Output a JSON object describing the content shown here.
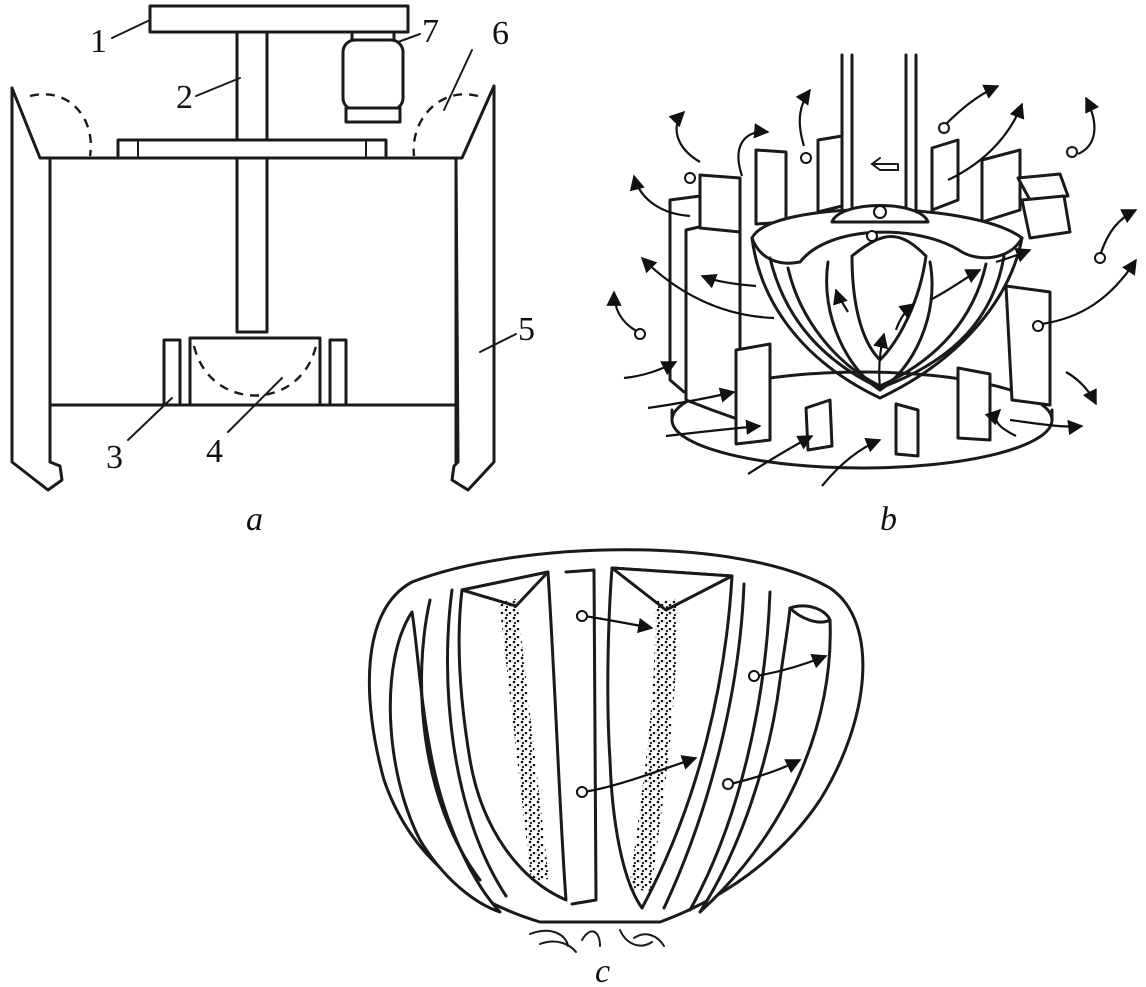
{
  "figure": {
    "panels": [
      {
        "id": "a",
        "caption": "a"
      },
      {
        "id": "b",
        "caption": "b"
      },
      {
        "id": "c",
        "caption": "c"
      }
    ],
    "labels": {
      "l1": "1",
      "l2": "2",
      "l3": "3",
      "l4": "4",
      "l5": "5",
      "l6": "6",
      "l7": "7"
    }
  }
}
